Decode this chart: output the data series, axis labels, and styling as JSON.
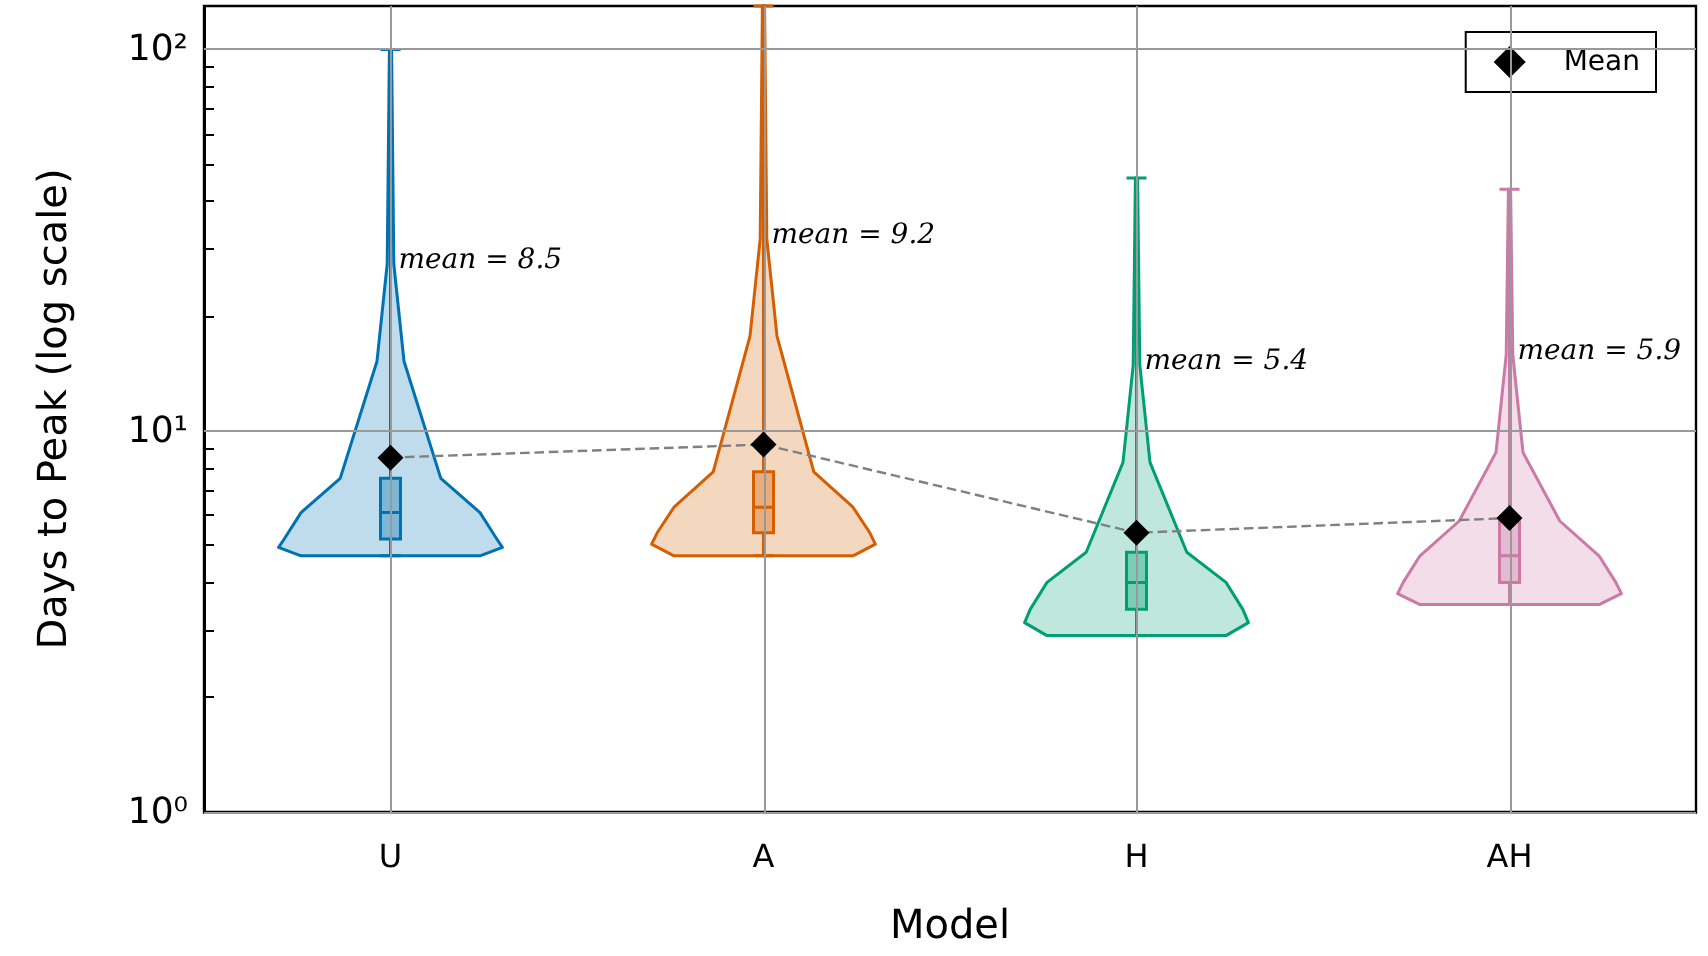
{
  "chart_data": {
    "type": "box",
    "xlabel": "Model",
    "ylabel": "Days to Peak (log scale)",
    "categories": [
      "U",
      "A",
      "H",
      "AH"
    ],
    "log": "y",
    "ylim": [
      1,
      130
    ],
    "yticks": [
      {
        "value": 1,
        "label": "10⁰"
      },
      {
        "value": 2,
        "label": null
      },
      {
        "value": 3,
        "label": null
      },
      {
        "value": 4,
        "label": null
      },
      {
        "value": 5,
        "label": null
      },
      {
        "value": 6,
        "label": null
      },
      {
        "value": 7,
        "label": null
      },
      {
        "value": 8,
        "label": null
      },
      {
        "value": 9,
        "label": null
      },
      {
        "value": 10,
        "label": "10¹"
      },
      {
        "value": 20,
        "label": null
      },
      {
        "value": 30,
        "label": null
      },
      {
        "value": 40,
        "label": null
      },
      {
        "value": 50,
        "label": null
      },
      {
        "value": 60,
        "label": null
      },
      {
        "value": 70,
        "label": null
      },
      {
        "value": 80,
        "label": null
      },
      {
        "value": 90,
        "label": null
      },
      {
        "value": 100,
        "label": "10²"
      }
    ],
    "grid": true,
    "legend": "top right",
    "series": [
      {
        "type": "box",
        "colors": [
          "#0072b2",
          "#d55e00",
          "#009e73",
          "#cc79a7"
        ],
        "boxes": [
          {
            "low": 4.7,
            "q1": 5.2,
            "median": 6.1,
            "q3": 7.5,
            "high": 100
          },
          {
            "low": 4.7,
            "q1": 5.4,
            "median": 6.3,
            "q3": 7.8,
            "high": 130
          },
          {
            "low": 2.9,
            "q1": 3.4,
            "median": 4.0,
            "q3": 4.8,
            "high": 46
          },
          {
            "low": 3.5,
            "q1": 4.0,
            "median": 4.7,
            "q3": 5.8,
            "high": 43
          }
        ]
      },
      {
        "type": "line",
        "x": [
          "U",
          "A",
          "H",
          "AH"
        ],
        "values": [
          8.5,
          9.2,
          5.4,
          5.9
        ],
        "color": "#808080",
        "line_style": "dashed",
        "marker": "none"
      },
      {
        "name": "Mean",
        "type": "scatter",
        "x": [
          "U",
          "A",
          "H",
          "AH"
        ],
        "values": [
          8.5,
          9.2,
          5.4,
          5.9
        ],
        "color": "#000000",
        "marker": "diamond"
      }
    ],
    "annotations": [
      "mean = 8.5",
      "mean = 9.2",
      "mean = 5.4",
      "mean = 5.9"
    ]
  }
}
